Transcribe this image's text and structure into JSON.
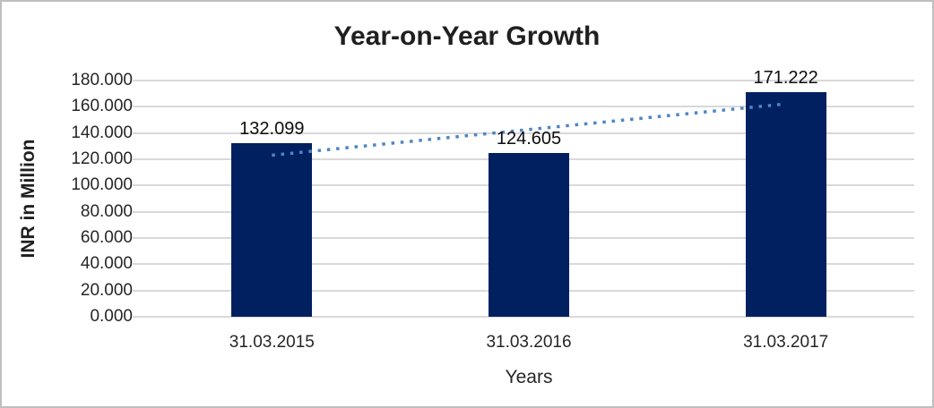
{
  "chart_data": {
    "type": "bar",
    "title": "Year-on-Year Growth",
    "xlabel": "Years",
    "ylabel": "INR in Million",
    "categories": [
      "31.03.2015",
      "31.03.2016",
      "31.03.2017"
    ],
    "values": [
      132.099,
      124.605,
      171.222
    ],
    "data_labels": [
      "132.099",
      "124.605",
      "171.222"
    ],
    "ylim": [
      0,
      180
    ],
    "ytick_step": 20,
    "ytick_labels": [
      "0.000",
      "20.000",
      "40.000",
      "60.000",
      "80.000",
      "100.000",
      "120.000",
      "140.000",
      "160.000",
      "180.000"
    ],
    "grid": "horizontal",
    "legend_position": "none",
    "trendline": {
      "kind": "linear",
      "style": "dotted"
    },
    "colors": {
      "bar": "#002060",
      "trendline": "#4e86c5",
      "gridline": "#d9d9d9",
      "axis_line": "#d9d9d9",
      "title_text": "#1f1f1f",
      "label_text": "#262626",
      "frame_border": "#bfbfbf"
    }
  }
}
